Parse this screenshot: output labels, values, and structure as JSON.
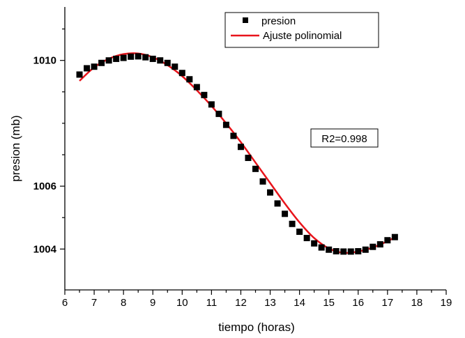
{
  "chart_data": {
    "type": "scatter",
    "xlabel": "tiempo (horas)",
    "ylabel": "presion (mb)",
    "xlim": [
      6,
      19
    ],
    "ylim": [
      1002.7,
      1011.7
    ],
    "x_ticks": [
      6,
      7,
      8,
      9,
      10,
      11,
      12,
      13,
      14,
      15,
      16,
      17,
      18,
      19
    ],
    "x_minor_step": 0.5,
    "y_ticks": [
      1004,
      1006,
      1010
    ],
    "y_minor_ticks": [
      1005,
      1007,
      1008,
      1009,
      1011
    ],
    "grid": false,
    "legend_position": "top-right",
    "annotation": "R2=0.998",
    "series": [
      {
        "name": "presion",
        "kind": "markers",
        "color": "#000000",
        "x": [
          6.5,
          6.75,
          7.0,
          7.25,
          7.5,
          7.75,
          8.0,
          8.25,
          8.5,
          8.75,
          9.0,
          9.25,
          9.5,
          9.75,
          10.0,
          10.25,
          10.5,
          10.75,
          11.0,
          11.25,
          11.5,
          11.75,
          12.0,
          12.25,
          12.5,
          12.75,
          13.0,
          13.25,
          13.5,
          13.75,
          14.0,
          14.25,
          14.5,
          14.75,
          15.0,
          15.25,
          15.5,
          15.75,
          16.0,
          16.25,
          16.5,
          16.75,
          17.0,
          17.25
        ],
        "y": [
          1009.55,
          1009.75,
          1009.8,
          1009.92,
          1010.0,
          1010.05,
          1010.08,
          1010.12,
          1010.13,
          1010.1,
          1010.05,
          1010.0,
          1009.92,
          1009.8,
          1009.6,
          1009.4,
          1009.15,
          1008.9,
          1008.6,
          1008.3,
          1007.95,
          1007.6,
          1007.25,
          1006.9,
          1006.55,
          1006.15,
          1005.8,
          1005.45,
          1005.12,
          1004.8,
          1004.55,
          1004.35,
          1004.18,
          1004.05,
          1003.98,
          1003.93,
          1003.92,
          1003.92,
          1003.93,
          1003.98,
          1004.07,
          1004.15,
          1004.28,
          1004.38
        ]
      },
      {
        "name": "Ajuste polinomial",
        "kind": "line",
        "color": "#e8141b",
        "x": [
          6.5,
          7.0,
          7.5,
          8.0,
          8.5,
          9.0,
          9.5,
          10.0,
          10.5,
          11.0,
          11.5,
          12.0,
          12.5,
          13.0,
          13.5,
          14.0,
          14.5,
          15.0,
          15.5,
          16.0,
          16.5,
          17.0,
          17.25
        ],
        "y": [
          1009.35,
          1009.78,
          1010.05,
          1010.2,
          1010.22,
          1010.1,
          1009.85,
          1009.5,
          1009.05,
          1008.55,
          1008.0,
          1007.4,
          1006.75,
          1006.1,
          1005.45,
          1004.85,
          1004.35,
          1004.02,
          1003.88,
          1003.92,
          1004.05,
          1004.25,
          1004.38
        ]
      }
    ]
  }
}
